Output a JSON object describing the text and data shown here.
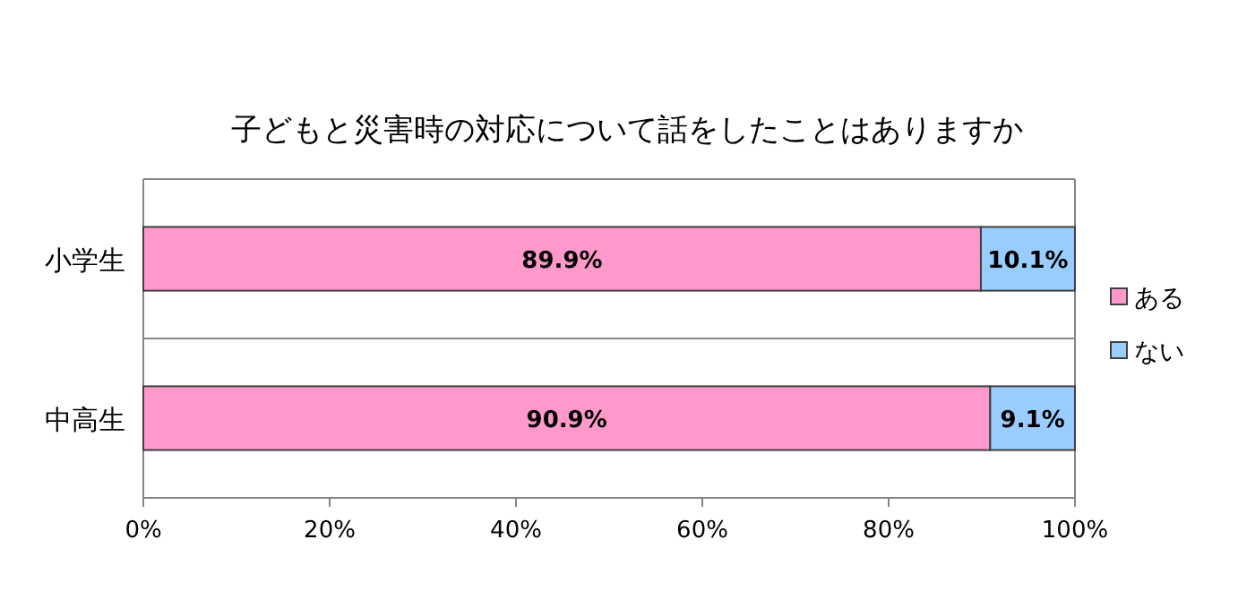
{
  "chart_data": {
    "type": "bar",
    "orientation": "horizontal",
    "stacked": true,
    "title": "子どもと災害時の対応について話をしたことはありますか",
    "categories": [
      "小学生",
      "中高生"
    ],
    "series": [
      {
        "name": "ある",
        "color": "#ff99cc",
        "values": [
          89.9,
          90.9
        ]
      },
      {
        "name": "ない",
        "color": "#99ccff",
        "values": [
          10.1,
          9.1
        ]
      }
    ],
    "value_labels": [
      [
        "89.9%",
        "90.9%"
      ],
      [
        "10.1%",
        "9.1%"
      ]
    ],
    "xlim": [
      0,
      100
    ],
    "xticks": [
      {
        "value": 0,
        "label": "0%"
      },
      {
        "value": 20,
        "label": "20%"
      },
      {
        "value": 40,
        "label": "40%"
      },
      {
        "value": 60,
        "label": "60%"
      },
      {
        "value": 80,
        "label": "80%"
      },
      {
        "value": 100,
        "label": "100%"
      }
    ],
    "grid": "y",
    "legend": "right"
  }
}
